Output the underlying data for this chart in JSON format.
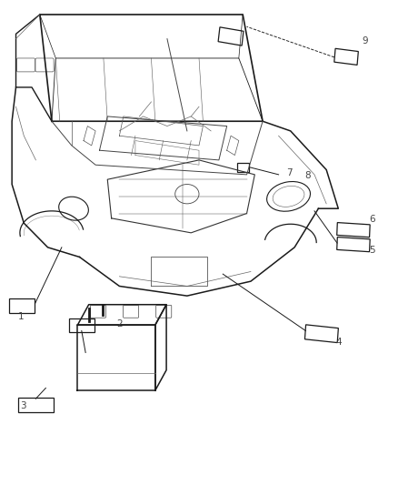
{
  "background_color": "#ffffff",
  "line_color": "#1a1a1a",
  "label_color": "#444444",
  "figure_width": 4.38,
  "figure_height": 5.33,
  "dpi": 100
}
